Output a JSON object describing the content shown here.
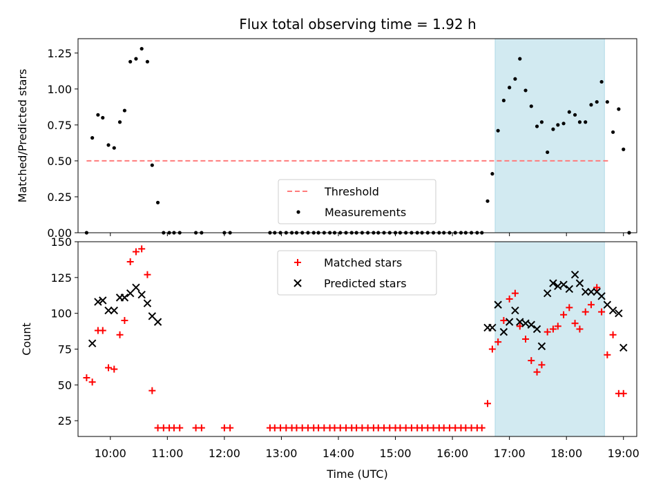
{
  "title": "Flux total observing time = 1.92 h",
  "colors": {
    "threshold": "#ff7b7b",
    "measurement": "#000000",
    "matched": "#ff0000",
    "predicted": "#000000",
    "shade": "#add8e6"
  },
  "chart_data": [
    {
      "type": "scatter",
      "panel": "top",
      "ylabel": "Matched/Predicted stars",
      "xlabel": "",
      "xlim": [
        "09:26",
        "19:14"
      ],
      "ylim": [
        0,
        1.35
      ],
      "yticks": [
        "0.00",
        "0.25",
        "0.50",
        "0.75",
        "1.00",
        "1.25"
      ],
      "ytick_values": [
        0,
        0.25,
        0.5,
        0.75,
        1.0,
        1.25
      ],
      "xticks": [
        "10:00",
        "11:00",
        "12:00",
        "13:00",
        "14:00",
        "15:00",
        "16:00",
        "17:00",
        "18:00",
        "19:00"
      ],
      "grid": false,
      "legend": {
        "placement": "lower-center",
        "entries": [
          "Threshold",
          "Measurements"
        ]
      },
      "shaded_interval": [
        "16:45",
        "18:40"
      ],
      "threshold": {
        "name": "Threshold",
        "value": 0.5,
        "x": [
          "09:35",
          "18:45"
        ]
      },
      "series": [
        {
          "name": "Measurements",
          "points": [
            [
              "09:35",
              0.0
            ],
            [
              "09:41",
              0.66
            ],
            [
              "09:47",
              0.82
            ],
            [
              "09:52",
              0.8
            ],
            [
              "09:58",
              0.61
            ],
            [
              "10:04",
              0.59
            ],
            [
              "10:10",
              0.77
            ],
            [
              "10:15",
              0.85
            ],
            [
              "10:21",
              1.19
            ],
            [
              "10:27",
              1.21
            ],
            [
              "10:33",
              1.28
            ],
            [
              "10:39",
              1.19
            ],
            [
              "10:44",
              0.47
            ],
            [
              "10:50",
              0.21
            ],
            [
              "10:56",
              0.0
            ],
            [
              "11:02",
              0.0
            ],
            [
              "11:07",
              0.0
            ],
            [
              "11:13",
              0.0
            ],
            [
              "11:30",
              0.0
            ],
            [
              "11:36",
              0.0
            ],
            [
              "12:00",
              0.0
            ],
            [
              "12:06",
              0.0
            ],
            [
              "12:48",
              0.0
            ],
            [
              "12:53",
              0.0
            ],
            [
              "12:59",
              0.0
            ],
            [
              "13:05",
              0.0
            ],
            [
              "13:11",
              0.0
            ],
            [
              "13:16",
              0.0
            ],
            [
              "13:22",
              0.0
            ],
            [
              "13:28",
              0.0
            ],
            [
              "13:34",
              0.0
            ],
            [
              "13:39",
              0.0
            ],
            [
              "13:45",
              0.0
            ],
            [
              "13:51",
              0.0
            ],
            [
              "13:56",
              0.0
            ],
            [
              "14:02",
              0.0
            ],
            [
              "14:08",
              0.0
            ],
            [
              "14:14",
              0.0
            ],
            [
              "14:19",
              0.0
            ],
            [
              "14:25",
              0.0
            ],
            [
              "14:31",
              0.0
            ],
            [
              "14:37",
              0.0
            ],
            [
              "14:42",
              0.0
            ],
            [
              "14:48",
              0.0
            ],
            [
              "14:54",
              0.0
            ],
            [
              "15:00",
              0.0
            ],
            [
              "15:05",
              0.0
            ],
            [
              "15:11",
              0.0
            ],
            [
              "15:17",
              0.0
            ],
            [
              "15:23",
              0.0
            ],
            [
              "15:28",
              0.0
            ],
            [
              "15:34",
              0.0
            ],
            [
              "15:40",
              0.0
            ],
            [
              "15:46",
              0.0
            ],
            [
              "15:51",
              0.0
            ],
            [
              "15:57",
              0.0
            ],
            [
              "16:03",
              0.0
            ],
            [
              "16:09",
              0.0
            ],
            [
              "16:14",
              0.0
            ],
            [
              "16:20",
              0.0
            ],
            [
              "16:26",
              0.0
            ],
            [
              "16:31",
              0.0
            ],
            [
              "16:37",
              0.22
            ],
            [
              "16:42",
              0.41
            ],
            [
              "16:48",
              0.71
            ],
            [
              "16:54",
              0.92
            ],
            [
              "17:00",
              1.01
            ],
            [
              "17:06",
              1.07
            ],
            [
              "17:11",
              1.21
            ],
            [
              "17:17",
              0.99
            ],
            [
              "17:23",
              0.88
            ],
            [
              "17:29",
              0.74
            ],
            [
              "17:34",
              0.77
            ],
            [
              "17:40",
              0.56
            ],
            [
              "17:46",
              0.72
            ],
            [
              "17:51",
              0.75
            ],
            [
              "17:57",
              0.76
            ],
            [
              "18:03",
              0.84
            ],
            [
              "18:09",
              0.82
            ],
            [
              "18:14",
              0.77
            ],
            [
              "18:20",
              0.77
            ],
            [
              "18:26",
              0.89
            ],
            [
              "18:32",
              0.91
            ],
            [
              "18:37",
              1.05
            ],
            [
              "18:43",
              0.91
            ],
            [
              "18:49",
              0.7
            ],
            [
              "18:55",
              0.86
            ],
            [
              "19:00",
              0.58
            ],
            [
              "19:06",
              0.0
            ]
          ]
        }
      ]
    },
    {
      "type": "scatter",
      "panel": "bottom",
      "ylabel": "Count",
      "xlabel": "Time (UTC)",
      "xlim": [
        "09:26",
        "19:14"
      ],
      "ylim": [
        14,
        150
      ],
      "yticks": [
        "25",
        "50",
        "75",
        "100",
        "125",
        "150"
      ],
      "ytick_values": [
        25,
        50,
        75,
        100,
        125,
        150
      ],
      "xticks": [
        "10:00",
        "11:00",
        "12:00",
        "13:00",
        "14:00",
        "15:00",
        "16:00",
        "17:00",
        "18:00",
        "19:00"
      ],
      "grid": false,
      "legend": {
        "placement": "upper-center",
        "entries": [
          "Matched stars",
          "Predicted stars"
        ]
      },
      "shaded_interval": [
        "16:45",
        "18:40"
      ],
      "series": [
        {
          "name": "Matched stars",
          "points": [
            [
              "09:35",
              55
            ],
            [
              "09:41",
              52
            ],
            [
              "09:47",
              88
            ],
            [
              "09:52",
              88
            ],
            [
              "09:58",
              62
            ],
            [
              "10:04",
              61
            ],
            [
              "10:10",
              85
            ],
            [
              "10:15",
              95
            ],
            [
              "10:21",
              136
            ],
            [
              "10:27",
              143
            ],
            [
              "10:33",
              145
            ],
            [
              "10:39",
              127
            ],
            [
              "10:44",
              46
            ],
            [
              "10:50",
              20
            ],
            [
              "10:56",
              20
            ],
            [
              "11:02",
              20
            ],
            [
              "11:07",
              20
            ],
            [
              "11:13",
              20
            ],
            [
              "11:30",
              20
            ],
            [
              "11:36",
              20
            ],
            [
              "12:00",
              20
            ],
            [
              "12:06",
              20
            ],
            [
              "12:48",
              20
            ],
            [
              "12:53",
              20
            ],
            [
              "12:59",
              20
            ],
            [
              "13:05",
              20
            ],
            [
              "13:11",
              20
            ],
            [
              "13:16",
              20
            ],
            [
              "13:22",
              20
            ],
            [
              "13:28",
              20
            ],
            [
              "13:34",
              20
            ],
            [
              "13:39",
              20
            ],
            [
              "13:45",
              20
            ],
            [
              "13:51",
              20
            ],
            [
              "13:56",
              20
            ],
            [
              "14:02",
              20
            ],
            [
              "14:08",
              20
            ],
            [
              "14:14",
              20
            ],
            [
              "14:19",
              20
            ],
            [
              "14:25",
              20
            ],
            [
              "14:31",
              20
            ],
            [
              "14:37",
              20
            ],
            [
              "14:42",
              20
            ],
            [
              "14:48",
              20
            ],
            [
              "14:54",
              20
            ],
            [
              "15:00",
              20
            ],
            [
              "15:05",
              20
            ],
            [
              "15:11",
              20
            ],
            [
              "15:17",
              20
            ],
            [
              "15:23",
              20
            ],
            [
              "15:28",
              20
            ],
            [
              "15:34",
              20
            ],
            [
              "15:40",
              20
            ],
            [
              "15:46",
              20
            ],
            [
              "15:51",
              20
            ],
            [
              "15:57",
              20
            ],
            [
              "16:03",
              20
            ],
            [
              "16:09",
              20
            ],
            [
              "16:14",
              20
            ],
            [
              "16:20",
              20
            ],
            [
              "16:26",
              20
            ],
            [
              "16:31",
              20
            ],
            [
              "16:37",
              37
            ],
            [
              "16:42",
              75
            ],
            [
              "16:48",
              80
            ],
            [
              "16:54",
              95
            ],
            [
              "17:00",
              110
            ],
            [
              "17:06",
              114
            ],
            [
              "17:11",
              91
            ],
            [
              "17:17",
              82
            ],
            [
              "17:23",
              67
            ],
            [
              "17:29",
              59
            ],
            [
              "17:34",
              64
            ],
            [
              "17:40",
              87
            ],
            [
              "17:46",
              89
            ],
            [
              "17:51",
              91
            ],
            [
              "17:57",
              99
            ],
            [
              "18:03",
              104
            ],
            [
              "18:09",
              93
            ],
            [
              "18:14",
              89
            ],
            [
              "18:20",
              101
            ],
            [
              "18:26",
              106
            ],
            [
              "18:32",
              118
            ],
            [
              "18:37",
              101
            ],
            [
              "18:43",
              71
            ],
            [
              "18:49",
              85
            ],
            [
              "18:55",
              44
            ],
            [
              "19:00",
              44
            ]
          ]
        },
        {
          "name": "Predicted stars",
          "points": [
            [
              "09:41",
              79
            ],
            [
              "09:47",
              108
            ],
            [
              "09:52",
              109
            ],
            [
              "09:58",
              102
            ],
            [
              "10:04",
              102
            ],
            [
              "10:10",
              111
            ],
            [
              "10:15",
              111
            ],
            [
              "10:21",
              114
            ],
            [
              "10:27",
              118
            ],
            [
              "10:33",
              113
            ],
            [
              "10:39",
              107
            ],
            [
              "10:44",
              98
            ],
            [
              "10:50",
              94
            ],
            [
              "16:37",
              90
            ],
            [
              "16:42",
              90
            ],
            [
              "16:48",
              106
            ],
            [
              "16:54",
              87
            ],
            [
              "17:00",
              94
            ],
            [
              "17:06",
              102
            ],
            [
              "17:11",
              94
            ],
            [
              "17:17",
              93
            ],
            [
              "17:23",
              92
            ],
            [
              "17:29",
              89
            ],
            [
              "17:34",
              77
            ],
            [
              "17:40",
              114
            ],
            [
              "17:46",
              121
            ],
            [
              "17:51",
              119
            ],
            [
              "17:57",
              120
            ],
            [
              "18:03",
              117
            ],
            [
              "18:09",
              127
            ],
            [
              "18:14",
              121
            ],
            [
              "18:20",
              115
            ],
            [
              "18:26",
              115
            ],
            [
              "18:32",
              115
            ],
            [
              "18:37",
              112
            ],
            [
              "18:43",
              106
            ],
            [
              "18:49",
              102
            ],
            [
              "18:55",
              100
            ],
            [
              "19:00",
              76
            ]
          ]
        }
      ]
    }
  ]
}
